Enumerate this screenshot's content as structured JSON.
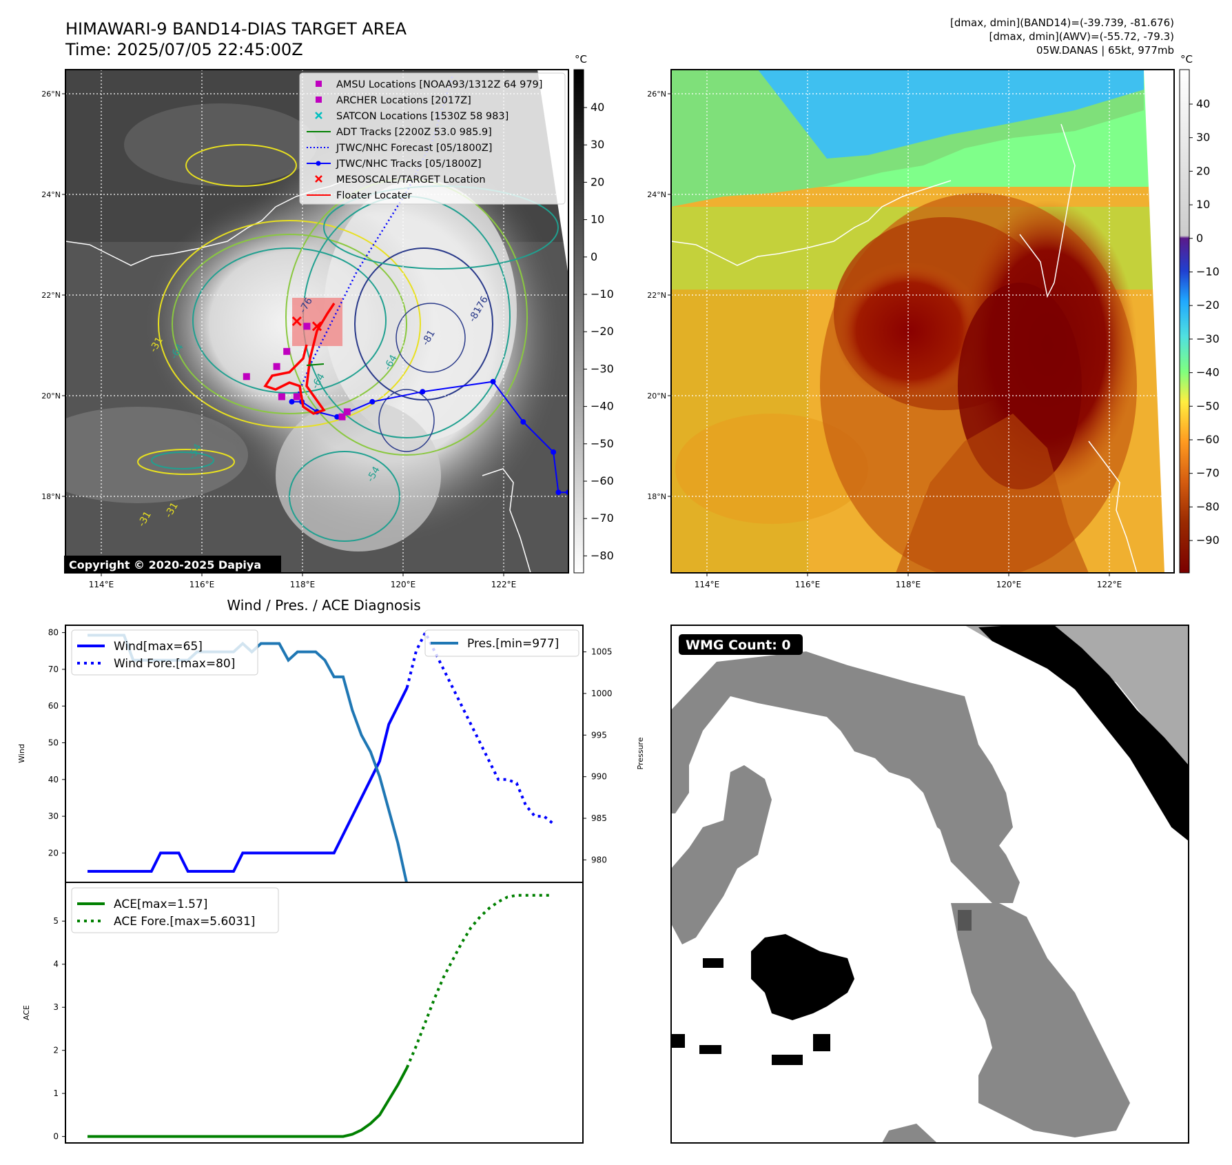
{
  "header": {
    "title": "HIMAWARI-9 BAND14-DIAS TARGET AREA",
    "time": "Time: 2025/07/05 22:45:00Z",
    "info_line1": "[dmax, dmin](BAND14)=(-39.739, -81.676)",
    "info_line2": "[dmax, dmin](AWV)=(-55.72, -79.3)",
    "info_line3": "05W.DANAS | 65kt, 977mb"
  },
  "copyright": "Copyright © 2020-2025 Dapiya",
  "map": {
    "lon_ticks": [
      "114°E",
      "116°E",
      "118°E",
      "120°E",
      "122°E"
    ],
    "lat_ticks": [
      "26°N",
      "24°N",
      "22°N",
      "20°N",
      "18°N"
    ],
    "lon_range": [
      113.3,
      123.3
    ],
    "lat_range": [
      16.6,
      26.6
    ],
    "legend": [
      {
        "label": "AMSU Locations [NOAA93/1312Z 64 979]",
        "marker": "square",
        "color": "#bf00bf"
      },
      {
        "label": "ARCHER Locations [2017Z]",
        "marker": "square",
        "color": "#bf00bf"
      },
      {
        "label": "SATCON Locations [1530Z 58 983]",
        "marker": "x",
        "color": "#00bfbf"
      },
      {
        "label": "ADT Tracks [2200Z 53.0 985.9]",
        "marker": "line",
        "color": "#008000"
      },
      {
        "label": "JTWC/NHC Forecast [05/1800Z]",
        "marker": "dotted",
        "color": "#0000ff"
      },
      {
        "label": "JTWC/NHC Tracks [05/1800Z]",
        "marker": "line-dot",
        "color": "#0000ff"
      },
      {
        "label": "MESOSCALE/TARGET Location",
        "marker": "x",
        "color": "#ff0000"
      },
      {
        "label": "Floater Locater",
        "marker": "line",
        "color": "#ff0000"
      }
    ],
    "jtwc_track": [
      [
        123.3,
        18.2
      ],
      [
        123.1,
        18.2
      ],
      [
        123.0,
        19.0
      ],
      [
        122.4,
        19.6
      ],
      [
        121.8,
        20.4
      ],
      [
        120.4,
        20.2
      ],
      [
        119.4,
        20.0
      ],
      [
        118.7,
        19.7
      ],
      [
        118.3,
        19.8
      ],
      [
        118.0,
        20.0
      ],
      [
        117.8,
        20.0
      ]
    ],
    "jtwc_forecast": [
      [
        117.9,
        20.1
      ],
      [
        118.2,
        20.8
      ],
      [
        118.6,
        21.6
      ],
      [
        119.1,
        22.6
      ],
      [
        119.6,
        23.4
      ],
      [
        120.1,
        24.2
      ],
      [
        120.6,
        25.2
      ],
      [
        121.0,
        26.5
      ]
    ],
    "amsu_points": [
      [
        118.9,
        19.8
      ],
      [
        118.8,
        19.7
      ],
      [
        117.9,
        20.1
      ],
      [
        117.6,
        20.1
      ],
      [
        117.5,
        20.7
      ],
      [
        117.7,
        21.0
      ],
      [
        116.9,
        20.5
      ],
      [
        118.1,
        21.5
      ]
    ],
    "target_points": [
      [
        117.9,
        21.6
      ],
      [
        118.3,
        21.5
      ]
    ],
    "contour_labels": [
      "-76",
      "-81",
      "-76",
      "-64",
      "-64",
      "-31",
      "-64",
      "-31",
      "-31",
      "-54",
      "-81",
      "-54"
    ]
  },
  "colorbar_left": {
    "unit": "°C",
    "ticks": [
      "40",
      "30",
      "20",
      "10",
      "0",
      "−10",
      "−20",
      "−30",
      "−40",
      "−50",
      "−60",
      "−70",
      "−80"
    ]
  },
  "colorbar_right": {
    "unit": "°C",
    "ticks": [
      "40",
      "30",
      "20",
      "10",
      "0",
      "−10",
      "−20",
      "−30",
      "−40",
      "−50",
      "−60",
      "−70",
      "−80",
      "−90"
    ]
  },
  "wmg": {
    "label": "WMG Count: 0"
  },
  "chart_data": [
    {
      "type": "line",
      "title": "Wind / Pres. / ACE Diagnosis",
      "ylabel": "Wind",
      "y2label": "Pressure",
      "ylim": [
        12,
        82
      ],
      "y2lim": [
        977.3,
        1008.2
      ],
      "yticks": [
        20,
        30,
        40,
        50,
        60,
        70,
        80
      ],
      "y2ticks": [
        980,
        985,
        990,
        995,
        1000,
        1005
      ],
      "series": [
        {
          "name": "Wind[max=65]",
          "style": "solid",
          "color": "#0000ff",
          "axis": "left",
          "values": [
            15,
            15,
            15,
            15,
            15,
            15,
            15,
            15,
            20,
            20,
            20,
            15,
            15,
            15,
            15,
            15,
            15,
            20,
            20,
            20,
            20,
            20,
            20,
            20,
            20,
            20,
            20,
            20,
            25,
            30,
            35,
            40,
            45,
            55,
            60,
            65
          ]
        },
        {
          "name": "Wind Fore.[max=80]",
          "style": "dotted",
          "color": "#0000ff",
          "axis": "left",
          "x_offset": 35,
          "values": [
            65,
            75,
            80,
            75,
            70,
            65,
            60,
            55,
            50,
            45,
            40,
            40,
            39,
            33,
            30,
            30,
            28
          ]
        },
        {
          "name": "Pres.[min=977]",
          "style": "solid",
          "color": "#1f77b4",
          "axis": "right",
          "values": [
            1007,
            1007,
            1007,
            1007,
            1007,
            1004,
            1004,
            1004,
            1004,
            1004,
            1004,
            1004,
            1005,
            1005,
            1005,
            1005,
            1005,
            1006,
            1005,
            1006,
            1006,
            1006,
            1004,
            1005,
            1005,
            1005,
            1004,
            1002,
            1002,
            998,
            995,
            993,
            990,
            986,
            982,
            977
          ]
        }
      ]
    },
    {
      "type": "line",
      "ylabel": "ACE",
      "ylim": [
        -0.15,
        5.9
      ],
      "yticks": [
        0,
        1,
        2,
        3,
        4,
        5
      ],
      "series": [
        {
          "name": "ACE[max=1.57]",
          "style": "solid",
          "color": "#008000",
          "values": [
            0,
            0,
            0,
            0,
            0,
            0,
            0,
            0,
            0,
            0,
            0,
            0,
            0,
            0,
            0,
            0,
            0,
            0,
            0,
            0,
            0,
            0,
            0,
            0,
            0,
            0,
            0,
            0,
            0,
            0.05,
            0.15,
            0.3,
            0.5,
            0.85,
            1.2,
            1.6
          ]
        },
        {
          "name": "ACE Fore.[max=5.6031]",
          "style": "dotted",
          "color": "#008000",
          "x_offset": 35,
          "values": [
            1.6,
            2.1,
            2.65,
            3.2,
            3.7,
            4.1,
            4.5,
            4.85,
            5.1,
            5.3,
            5.45,
            5.56,
            5.6,
            5.6,
            5.6,
            5.6,
            5.6
          ]
        }
      ]
    }
  ]
}
